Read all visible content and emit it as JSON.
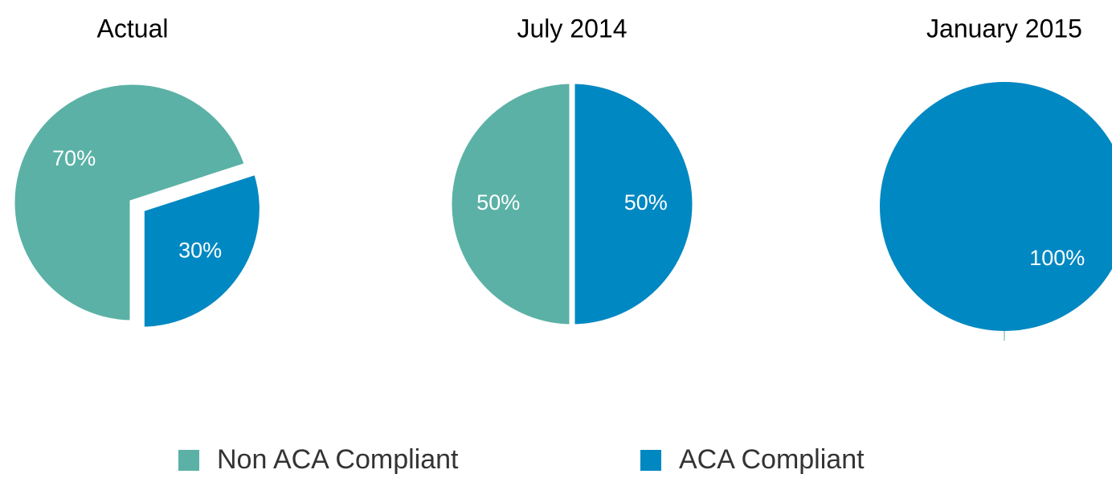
{
  "chart_data": [
    {
      "type": "pie",
      "title": "Actual",
      "values": [
        70,
        30
      ],
      "value_labels": [
        "70%",
        "30%"
      ],
      "exploded": [
        false,
        true
      ]
    },
    {
      "type": "pie",
      "title": "July 2014",
      "values": [
        50,
        50
      ],
      "value_labels": [
        "50%",
        "50%"
      ],
      "exploded": [
        false,
        false
      ]
    },
    {
      "type": "pie",
      "title": "January 2015",
      "values": [
        0,
        100
      ],
      "value_labels": [
        null,
        "100%"
      ],
      "exploded": [
        false,
        false
      ]
    }
  ],
  "legend": {
    "labels": [
      "Non ACA Compliant",
      "ACA Compliant"
    ],
    "colors": [
      "#5bb1a6",
      "#0088c2"
    ]
  }
}
